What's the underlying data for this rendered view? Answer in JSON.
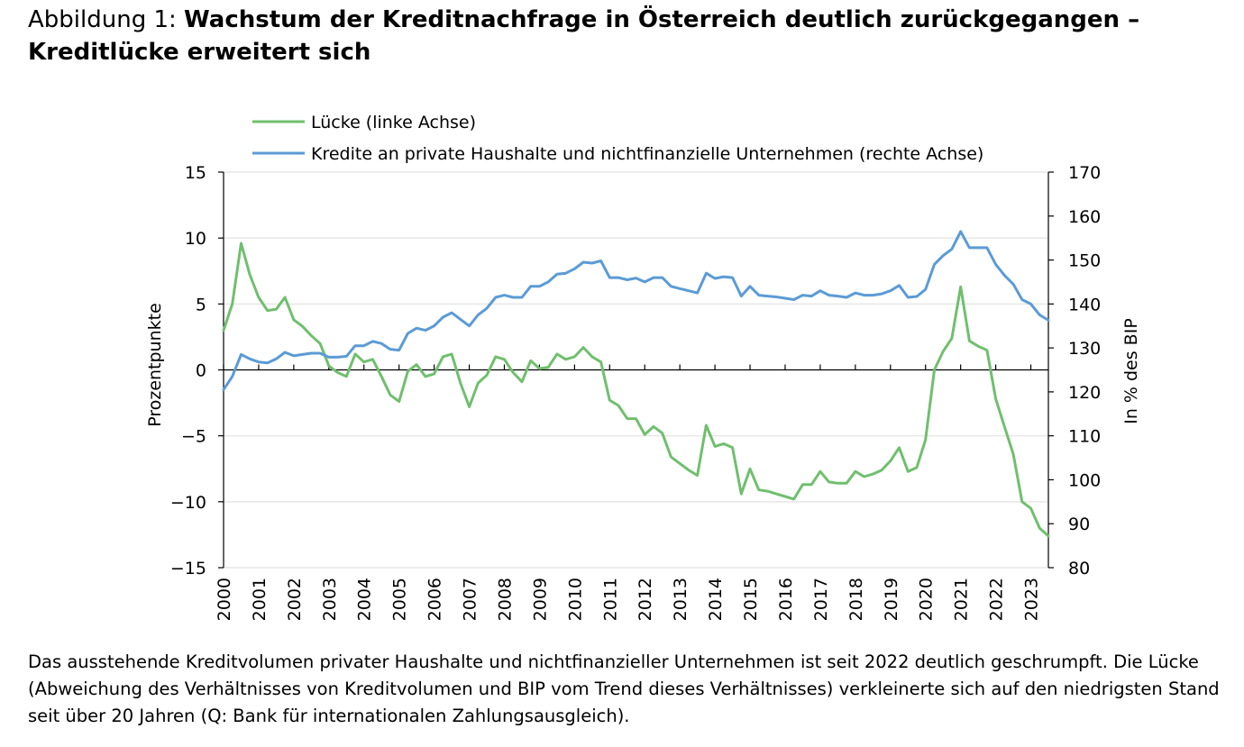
{
  "figure": {
    "title_prefix": "Abbildung 1: ",
    "title_main": "Wachstum der Kreditnachfrage in Österreich deutlich zurückgegangen – Kreditlücke erweitert sich",
    "caption": "Das ausstehende Kreditvolumen privater Haushalte und nichtfinanzieller Unternehmen ist seit 2022 deutlich geschrumpft. Die Lücke (Abweichung des Verhältnisses von Kreditvolumen und BIP vom Trend dieses Verhältnisses) verkleinerte sich auf den niedrigsten Stand seit über 20 Jahren (Q: Bank für internationalen Zahlungsausgleich)."
  },
  "colors": {
    "gap": "#70bf6e",
    "credit": "#5b9bd5",
    "grid": "#e6e6e6",
    "axis": "#000000"
  },
  "chart_data": {
    "type": "line",
    "ylabel_left": "Prozentpunkte",
    "ylabel_right": "In % des BIP",
    "ylim_left": [
      -15,
      15
    ],
    "ylim_right": [
      80,
      170
    ],
    "yticks_left": [
      "15",
      "10",
      "5",
      "0",
      "-5",
      "-10",
      "-15"
    ],
    "yticks_right": [
      "170",
      "160",
      "150",
      "140",
      "130",
      "120",
      "110",
      "100",
      "90",
      "80"
    ],
    "xticks": [
      "2000",
      "2001",
      "2002",
      "2003",
      "2004",
      "2005",
      "2006",
      "2007",
      "2008",
      "2009",
      "2010",
      "2011",
      "2012",
      "2013",
      "2014",
      "2015",
      "2016",
      "2017",
      "2018",
      "2019",
      "2020",
      "2021",
      "2022",
      "2023"
    ],
    "x_start_year": 2000,
    "x_end": 2023.5,
    "grid": "horizontal",
    "legend_position": "top",
    "series": [
      {
        "name": "Lücke (linke Achse)",
        "axis": "left",
        "values": [
          3.0,
          5.0,
          9.6,
          7.2,
          5.5,
          4.5,
          4.6,
          5.5,
          3.8,
          3.3,
          2.6,
          2.0,
          0.3,
          -0.2,
          -0.5,
          1.2,
          0.6,
          0.8,
          -0.5,
          -1.9,
          -2.4,
          -0.1,
          0.4,
          -0.5,
          -0.3,
          1.0,
          1.2,
          -1.0,
          -2.8,
          -1.0,
          -0.4,
          1.0,
          0.8,
          -0.2,
          -0.9,
          0.7,
          0.1,
          0.2,
          1.2,
          0.8,
          1.0,
          1.7,
          1.0,
          0.6,
          -2.3,
          -2.7,
          -3.7,
          -3.7,
          -4.9,
          -4.3,
          -4.8,
          -6.6,
          -7.1,
          -7.6,
          -8.0,
          -4.2,
          -5.8,
          -5.6,
          -5.9,
          -9.4,
          -7.5,
          -9.1,
          -9.2,
          -9.4,
          -9.6,
          -9.8,
          -8.7,
          -8.7,
          -7.7,
          -8.5,
          -8.6,
          -8.6,
          -7.7,
          -8.1,
          -7.9,
          -7.6,
          -6.9,
          -5.9,
          -7.7,
          -7.4,
          -5.3,
          0.0,
          1.4,
          2.4,
          6.3,
          2.2,
          1.8,
          1.5,
          -2.2,
          -4.3,
          -6.4,
          -10.0,
          -10.5,
          -12.0,
          -12.6
        ]
      },
      {
        "name": "Kredite an private Haushalte und nichtfinanzielle Unternehmen (rechte Achse)",
        "axis": "right",
        "values": [
          120.5,
          123.5,
          128.5,
          127.5,
          126.8,
          126.6,
          127.5,
          129.0,
          128.2,
          128.5,
          128.8,
          128.8,
          127.9,
          127.9,
          128.1,
          130.5,
          130.5,
          131.5,
          131.0,
          129.7,
          129.5,
          133.3,
          134.5,
          134.0,
          135.0,
          137.0,
          138.0,
          136.5,
          135.0,
          137.5,
          139.0,
          141.5,
          142.0,
          141.5,
          141.5,
          144.0,
          144.0,
          145.0,
          146.8,
          147.0,
          148.0,
          149.5,
          149.3,
          149.8,
          146.0,
          146.0,
          145.5,
          145.9,
          145.0,
          146.0,
          146.0,
          144.0,
          143.5,
          143.0,
          142.5,
          147.0,
          145.8,
          146.2,
          146.0,
          141.8,
          144.0,
          142.0,
          141.8,
          141.6,
          141.3,
          141.0,
          142.0,
          141.8,
          143.0,
          142.0,
          141.8,
          141.5,
          142.5,
          142.0,
          142.0,
          142.3,
          143.0,
          144.2,
          141.5,
          141.7,
          143.3,
          149.0,
          151.0,
          152.5,
          156.5,
          152.8,
          152.8,
          152.8,
          149.0,
          146.5,
          144.5,
          141.0,
          140.0,
          137.5,
          136.3
        ]
      }
    ]
  }
}
